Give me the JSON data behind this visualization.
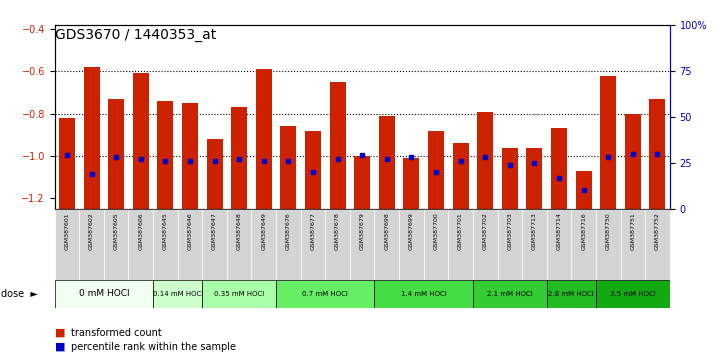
{
  "title": "GDS3670 / 1440353_at",
  "samples": [
    "GSM387601",
    "GSM387602",
    "GSM387605",
    "GSM387606",
    "GSM387645",
    "GSM387646",
    "GSM387647",
    "GSM387648",
    "GSM387649",
    "GSM387676",
    "GSM387677",
    "GSM387678",
    "GSM387679",
    "GSM387698",
    "GSM387699",
    "GSM387700",
    "GSM387701",
    "GSM387702",
    "GSM387703",
    "GSM387713",
    "GSM387714",
    "GSM387716",
    "GSM387750",
    "GSM387751",
    "GSM387752"
  ],
  "transformed_counts": [
    -0.82,
    -0.58,
    -0.73,
    -0.61,
    -0.74,
    -0.75,
    -0.92,
    -0.77,
    -0.59,
    -0.86,
    -0.88,
    -0.65,
    -1.0,
    -0.81,
    -1.01,
    -0.88,
    -0.94,
    -0.79,
    -0.96,
    -0.96,
    -0.87,
    -1.07,
    -0.62,
    -0.8,
    -0.73
  ],
  "percentile_ranks": [
    29,
    19,
    28,
    27,
    26,
    26,
    26,
    27,
    26,
    26,
    20,
    27,
    29,
    27,
    28,
    20,
    26,
    28,
    24,
    25,
    17,
    10,
    28,
    30,
    30
  ],
  "dose_groups": [
    {
      "label": "0 mM HOCl",
      "start": 0,
      "end": 4,
      "color": "#f0fff0"
    },
    {
      "label": "0.14 mM HOCl",
      "start": 4,
      "end": 6,
      "color": "#ccffcc"
    },
    {
      "label": "0.35 mM HOCl",
      "start": 6,
      "end": 9,
      "color": "#aaffaa"
    },
    {
      "label": "0.7 mM HOCl",
      "start": 9,
      "end": 13,
      "color": "#88ee88"
    },
    {
      "label": "1.4 mM HOCl",
      "start": 13,
      "end": 17,
      "color": "#66dd66"
    },
    {
      "label": "2.1 mM HOCl",
      "start": 17,
      "end": 20,
      "color": "#44cc44"
    },
    {
      "label": "2.8 mM HOCl",
      "start": 20,
      "end": 22,
      "color": "#33bb33"
    },
    {
      "label": "3.5 mM HOCl",
      "start": 22,
      "end": 25,
      "color": "#22aa22"
    }
  ],
  "ylim_left": [
    -1.25,
    -0.38
  ],
  "ylim_right": [
    0,
    100
  ],
  "yticks_left": [
    -1.2,
    -1.0,
    -0.8,
    -0.6,
    -0.4
  ],
  "yticks_right": [
    0,
    25,
    50,
    75,
    100
  ],
  "bar_color": "#cc2200",
  "percentile_color": "#0000cc",
  "xticklabel_bg": "#d0d0d0",
  "bar_bottom": -1.25
}
